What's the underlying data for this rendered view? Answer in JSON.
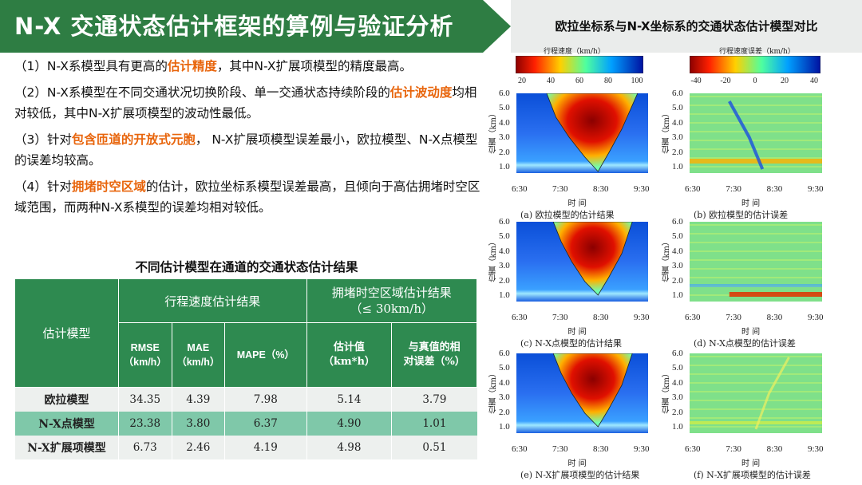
{
  "header": {
    "title": "N-X 交通状态估计框架的算例与验证分析",
    "right_title": "欧拉坐标系与N-X坐标系的交通状态估计模型对比"
  },
  "bullets": [
    {
      "pre": "（1）N-X系模型具有更高的",
      "hl": "估计精度",
      "post": "，其中N-X扩展项模型的精度最高。"
    },
    {
      "pre": "（2）N-X系模型在不同交通状况切换阶段、单一交通状态持续阶段的",
      "hl": "估计波动度",
      "post": "均相对较低，其中N-X扩展项模型的波动性最低。"
    },
    {
      "pre": "（3）针对",
      "hl": "包含匝道的开放式元胞",
      "post": "， N-X扩展项模型误差最小，欧拉模型、N-X点模型的误差均较高。"
    },
    {
      "pre": "（4）针对",
      "hl": "拥堵时空区域",
      "post": "的估计，欧拉坐标系模型误差最高，且倾向于高估拥堵时空区域范围，而两种N-X系模型的误差均相对较低。"
    }
  ],
  "table": {
    "title": "不同估计模型在通道的交通状态估计结果",
    "col_model": "估计模型",
    "group_speed": "行程速度估计结果",
    "group_cong_l1": "拥堵时空区域估计结果",
    "group_cong_l2": "（≤ 30km/h）",
    "sub_headers": [
      {
        "l1": "RMSE",
        "l2": "（km/h）"
      },
      {
        "l1": "MAE",
        "l2": "（km/h）"
      },
      {
        "l1": "MAPE（%）",
        "l2": ""
      },
      {
        "l1": "估计值",
        "l2": "（km*h）"
      },
      {
        "l1": "与真值的相",
        "l2": "对误差（%）"
      }
    ],
    "rows": [
      {
        "name": "欧拉模型",
        "values": [
          "34.35",
          "4.39",
          "7.98",
          "5.14",
          "3.79"
        ]
      },
      {
        "name": "N-X点模型",
        "values": [
          "23.38",
          "3.80",
          "6.37",
          "4.90",
          "1.01"
        ]
      },
      {
        "name": "N-X扩展项模型",
        "values": [
          "6.73",
          "2.46",
          "4.19",
          "4.98",
          "0.51"
        ]
      }
    ]
  },
  "figure": {
    "speed_colorbar": {
      "title": "行程速度（km/h）",
      "ticks": [
        "20",
        "40",
        "60",
        "80",
        "100"
      ]
    },
    "error_colorbar": {
      "title": "行程速度误差（km/h）",
      "ticks": [
        "-40",
        "-20",
        "0",
        "20",
        "40"
      ]
    },
    "y_ticks": [
      "6.0",
      "5.0",
      "4.0",
      "3.0",
      "2.0",
      "1.0"
    ],
    "x_ticks": [
      "6:30",
      "7:30",
      "8:30",
      "9:30"
    ],
    "y_label": "位置（km）",
    "x_label": "时 间",
    "captions": [
      "(a) 欧拉模型的估计结果",
      "(b) 欧拉模型的估计误差",
      "(c) N-X点模型的估计结果",
      "(d) N-X点模型的估计误差",
      "(e) N-X扩展项模型的估计结果",
      "(f) N-X扩展项模型的估计误差"
    ]
  }
}
